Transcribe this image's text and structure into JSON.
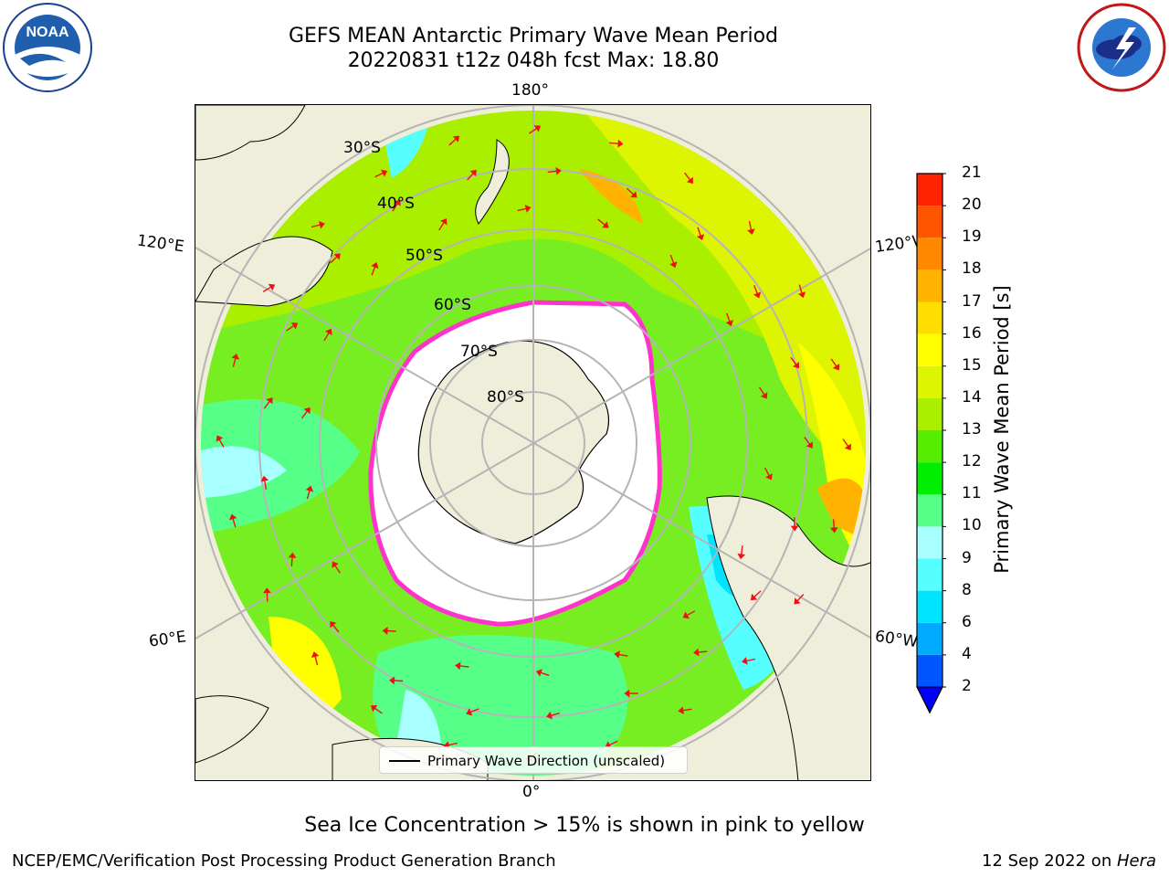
{
  "header": {
    "title_line1": "GEFS MEAN Antarctic Primary Wave Mean Period",
    "title_line2": "20220831 t12z 048h fcst   Max: 18.80"
  },
  "logos": {
    "left": {
      "name": "noaa-logo",
      "text": "NOAA",
      "ring_text": "NATIONAL OCEANIC AND ATMOSPHERIC ADMINISTRATION · U.S. DEPARTMENT OF COMMERCE"
    },
    "right": {
      "name": "nws-logo",
      "ring_text": "NATIONAL WEATHER SERVICE"
    }
  },
  "map": {
    "projection": "south polar stereographic",
    "longitude_labels": {
      "top": "180°",
      "bottom": "0°",
      "upper_left": "120°E",
      "upper_right": "120°W",
      "lower_left": "60°E",
      "lower_right": "60°W"
    },
    "latitude_labels": [
      "30°S",
      "40°S",
      "50°S",
      "60°S",
      "70°S",
      "80°S"
    ]
  },
  "colorbar": {
    "label": "Primary Wave Mean Period [s]",
    "ticks": [
      "2",
      "4",
      "6",
      "8",
      "9",
      "10",
      "11",
      "12",
      "13",
      "14",
      "15",
      "16",
      "17",
      "18",
      "19",
      "20",
      "21"
    ],
    "colors": [
      "#0055ff",
      "#00aaff",
      "#00e5ff",
      "#55ffff",
      "#a8ffff",
      "#55ff88",
      "#00ee00",
      "#55ee00",
      "#aaee00",
      "#ddf500",
      "#ffff00",
      "#ffdd00",
      "#ffb300",
      "#ff8800",
      "#ff5500",
      "#ff2200"
    ],
    "under_color": "#0000ff"
  },
  "legend": {
    "label": "Primary Wave Direction (unscaled)"
  },
  "footer": {
    "note": "Sea Ice Concentration > 15% is shown in pink to yellow",
    "credit": "NCEP/EMC/Verification Post Processing Product Generation Branch",
    "date": "12 Sep 2022 on ",
    "machine": "Hera"
  }
}
